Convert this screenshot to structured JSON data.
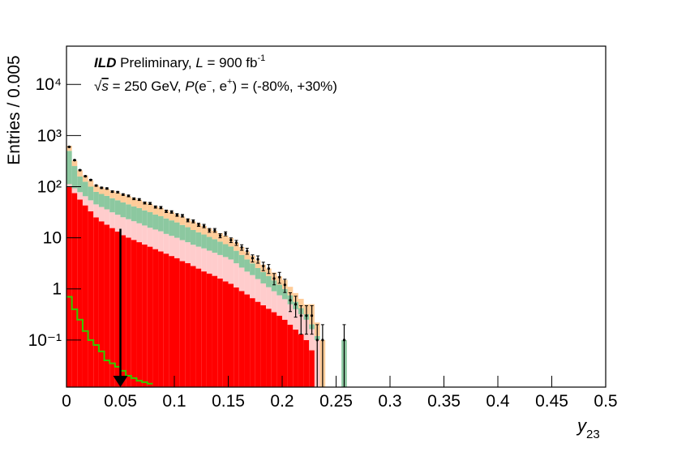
{
  "chart_data": {
    "type": "stacked-histogram",
    "y_label": "Entries / 0.005",
    "x_label": [
      "y",
      "23"
    ],
    "annotations": [
      [
        "ILD",
        " Preliminary, ",
        "L",
        " = 900 fb",
        "-1"
      ],
      [
        "√",
        "s",
        " = 250 GeV, ",
        "P",
        "(e",
        "−",
        ", e",
        "+",
        ") = (-80%, +30%)"
      ]
    ],
    "log_y": true,
    "xlim": [
      0,
      0.5
    ],
    "xticks": [
      0,
      0.05,
      0.1,
      0.15,
      0.2,
      0.25,
      0.3,
      0.35,
      0.4,
      0.45,
      0.5
    ],
    "ylim": [
      0.012,
      56000
    ],
    "yticks": [
      {
        "value": 0.1,
        "label": "10⁻¹"
      },
      1,
      10,
      {
        "value": 100,
        "label": "10²"
      },
      {
        "value": 1000,
        "label": "10³"
      },
      {
        "value": 10000,
        "label": "10⁴"
      }
    ],
    "bins": [
      0,
      0.005,
      0.01,
      0.015,
      0.02,
      0.025,
      0.03,
      0.035,
      0.04,
      0.045,
      0.05,
      0.055,
      0.06,
      0.065,
      0.07,
      0.075,
      0.08,
      0.085,
      0.09,
      0.095,
      0.1,
      0.105,
      0.11,
      0.115,
      0.12,
      0.125,
      0.13,
      0.135,
      0.14,
      0.145,
      0.15,
      0.155,
      0.16,
      0.165,
      0.17,
      0.175,
      0.18,
      0.185,
      0.19,
      0.195,
      0.2,
      0.205,
      0.21,
      0.215,
      0.22,
      0.225,
      0.23,
      0.235,
      0.24,
      0.245,
      0.25,
      0.255,
      0.26
    ],
    "series": [
      {
        "color": "#ff0000",
        "values": [
          100,
          75,
          56,
          43,
          33,
          25,
          21,
          18,
          15.5,
          13.2,
          11.2,
          10.1,
          9.1,
          8.2,
          7.4,
          6.7,
          6.0,
          5.4,
          4.9,
          4.4,
          4.0,
          3.5,
          3.2,
          2.8,
          2.5,
          2.2,
          2.0,
          1.8,
          1.6,
          1.4,
          1.26,
          1.07,
          0.91,
          0.78,
          0.66,
          0.56,
          0.48,
          0.41,
          0.35,
          0.3,
          0.25,
          0.2,
          0.16,
          0.13,
          0.1,
          0.063,
          0,
          0,
          0,
          0,
          0,
          0
        ]
      },
      {
        "color": "#ffcccc",
        "values": [
          12,
          18,
          22,
          22,
          21,
          20,
          19,
          18,
          16,
          15,
          14,
          13,
          12,
          11,
          10,
          9,
          8.5,
          8,
          7,
          6.5,
          6,
          5.5,
          5,
          4.5,
          4.2,
          4,
          3.6,
          3.3,
          3,
          2.8,
          2.5,
          2.1,
          1.7,
          1.4,
          1.2,
          1.0,
          0.8,
          0.67,
          0.55,
          0.45,
          0.38,
          0.3,
          0.24,
          0.19,
          0.15,
          0.1,
          0.1,
          0,
          0,
          0,
          0,
          0
        ]
      },
      {
        "color": "#8cc8a0",
        "values": [
          390,
          160,
          80,
          60,
          46,
          34,
          32,
          30,
          28,
          26,
          24,
          22,
          20,
          19,
          17,
          16,
          14,
          13,
          12,
          11,
          10,
          8.8,
          7.9,
          6.9,
          6.1,
          5.4,
          4.8,
          4.3,
          3.8,
          3.3,
          3.0,
          2.4,
          2.0,
          1.6,
          1.3,
          1.0,
          0.85,
          0.7,
          0.57,
          0.46,
          0.37,
          0.25,
          0.16,
          0.1,
          0.07,
          0.04,
          0.02,
          0,
          0,
          0,
          0,
          0.1
        ]
      },
      {
        "color": "#ffcc99",
        "values": [
          130,
          70,
          50,
          40,
          33,
          28,
          26,
          25,
          24,
          23,
          22,
          20,
          19,
          17,
          16,
          14.5,
          13,
          12,
          11,
          10,
          9,
          8.2,
          7.4,
          6.7,
          6.0,
          5.4,
          4.8,
          4.3,
          3.9,
          3.5,
          3.2,
          2.5,
          2.0,
          1.6,
          1.3,
          1.05,
          0.85,
          0.72,
          0.62,
          0.55,
          0.5,
          0.35,
          0.27,
          0.22,
          0.18,
          0.3,
          0.1,
          0.1,
          0,
          0,
          0,
          0
        ]
      }
    ],
    "line": {
      "color": "#33cc00",
      "values": [
        0.7,
        0.4,
        0.25,
        0.15,
        0.1,
        0.08,
        0.06,
        0.04,
        0.035,
        0.03,
        0.025,
        0.02,
        0.018,
        0.016,
        0.015,
        0.014
      ]
    },
    "points": {
      "color": "#000000",
      "values": [
        600,
        330,
        210,
        160,
        135,
        105,
        95,
        92,
        80,
        78,
        70,
        66,
        58,
        56,
        48,
        47,
        40,
        39,
        33,
        32,
        28,
        27,
        22,
        21,
        18,
        17,
        14,
        14,
        11,
        12,
        9,
        8,
        6.5,
        5.5,
        4,
        3.8,
        2.8,
        2.5,
        1.6,
        1.7,
        1.2,
        0.6,
        0.5,
        0.3,
        0.3,
        0.3,
        0.1,
        0.1,
        null,
        null,
        null,
        0.1
      ],
      "errors": [
        7.7,
        5.7,
        4.6,
        4,
        3.7,
        3.2,
        3.1,
        3,
        2.8,
        2.8,
        2.6,
        2.6,
        2.4,
        2.4,
        2.2,
        2.2,
        2,
        2,
        1.8,
        1.8,
        1.7,
        1.6,
        1.5,
        1.4,
        1.3,
        1.3,
        1.2,
        1.2,
        1.0,
        1.1,
        0.95,
        0.9,
        0.8,
        0.74,
        0.63,
        0.62,
        0.53,
        0.5,
        0.4,
        0.41,
        0.35,
        0.24,
        0.22,
        0.17,
        0.17,
        0.17,
        0.1,
        0.1,
        null,
        null,
        null,
        0.1
      ]
    },
    "arrow": {
      "x": 0.05,
      "from": 15,
      "color": "#000000"
    }
  }
}
